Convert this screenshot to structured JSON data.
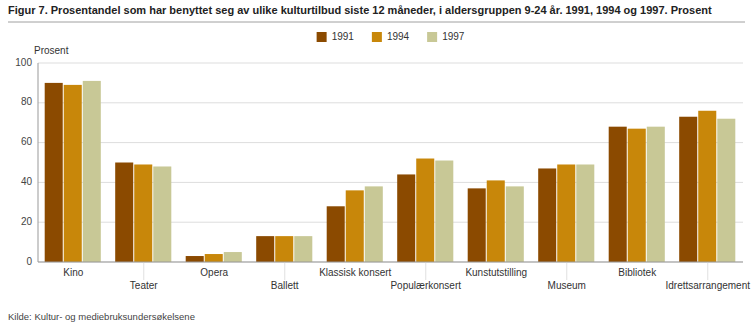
{
  "chart_data": {
    "type": "bar",
    "title": "Figur 7. Prosentandel som har benyttet seg av ulike kulturtilbud siste 12 måneder, i aldersgruppen 9-24 år. 1991, 1994 og 1997. Prosent",
    "ylabel": "Prosent",
    "source": "Kilde:  Kultur- og mediebruksundersøkelsene",
    "categories": [
      "Kino",
      "Teater",
      "Opera",
      "Ballett",
      "Klassisk konsert",
      "Populærkonsert",
      "Kunstutstilling",
      "Museum",
      "Bibliotek",
      "Idrettsarrangement"
    ],
    "series": [
      {
        "name": "1991",
        "color": "#8B4A00",
        "values": [
          90,
          50,
          3,
          13,
          28,
          44,
          37,
          47,
          68,
          73
        ]
      },
      {
        "name": "1994",
        "color": "#C8870A",
        "values": [
          89,
          49,
          4,
          13,
          36,
          52,
          41,
          49,
          67,
          76
        ]
      },
      {
        "name": "1997",
        "color": "#C8C896",
        "values": [
          91,
          48,
          5,
          13,
          38,
          51,
          38,
          49,
          68,
          72
        ]
      }
    ],
    "ylim": [
      0,
      100
    ],
    "yticks": [
      0,
      20,
      40,
      60,
      80,
      100
    ],
    "grid": true,
    "legend": "top"
  }
}
